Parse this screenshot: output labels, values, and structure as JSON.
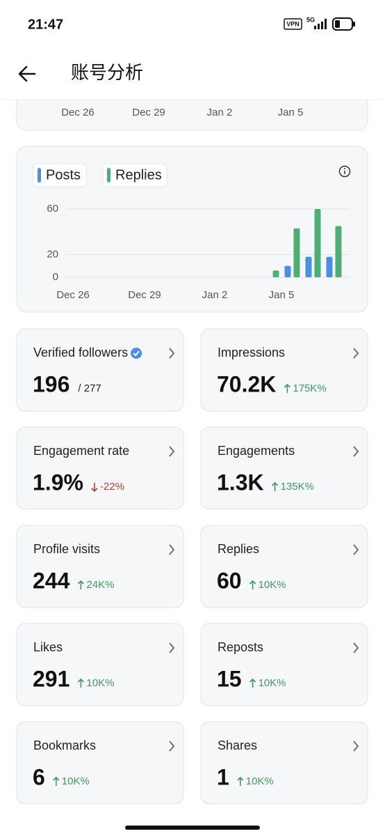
{
  "status_bar": {
    "time": "21:47",
    "vpn": "VPN",
    "network": "5G"
  },
  "header": {
    "title": "账号分析"
  },
  "top_chart_ticks": [
    "Dec 26",
    "Dec 29",
    "Jan 2",
    "Jan 5"
  ],
  "chart_data": {
    "type": "bar",
    "categories": [
      "Dec 26",
      null,
      null,
      "Dec 29",
      null,
      null,
      null,
      "Jan 2",
      null,
      null,
      "Jan 5",
      null,
      null,
      null
    ],
    "series": [
      {
        "name": "Posts",
        "color": "#4a90e2",
        "values": [
          0,
          0,
          0,
          0,
          0,
          0,
          0,
          0,
          0,
          0,
          0,
          10,
          18,
          18
        ]
      },
      {
        "name": "Replies",
        "color": "#4caf73",
        "values": [
          0,
          0,
          0,
          0,
          0,
          0,
          0,
          0,
          0,
          0,
          6,
          43,
          60,
          45
        ]
      }
    ],
    "ylim": [
      0,
      60
    ],
    "yticks": [
      0,
      20,
      60
    ],
    "grid": true
  },
  "cards": [
    {
      "title": "Verified followers",
      "value": "196",
      "extra": "/ 277",
      "verified": true
    },
    {
      "title": "Impressions",
      "value": "70.2K",
      "change": "175K%",
      "direction": "up"
    },
    {
      "title": "Engagement rate",
      "value": "1.9%",
      "change": "-22%",
      "direction": "down"
    },
    {
      "title": "Engagements",
      "value": "1.3K",
      "change": "135K%",
      "direction": "up"
    },
    {
      "title": "Profile visits",
      "value": "244",
      "change": "24K%",
      "direction": "up"
    },
    {
      "title": "Replies",
      "value": "60",
      "change": "10K%",
      "direction": "up"
    },
    {
      "title": "Likes",
      "value": "291",
      "change": "10K%",
      "direction": "up"
    },
    {
      "title": "Reposts",
      "value": "15",
      "change": "10K%",
      "direction": "up"
    },
    {
      "title": "Bookmarks",
      "value": "6",
      "change": "10K%",
      "direction": "up"
    },
    {
      "title": "Shares",
      "value": "1",
      "change": "10K%",
      "direction": "up"
    }
  ]
}
